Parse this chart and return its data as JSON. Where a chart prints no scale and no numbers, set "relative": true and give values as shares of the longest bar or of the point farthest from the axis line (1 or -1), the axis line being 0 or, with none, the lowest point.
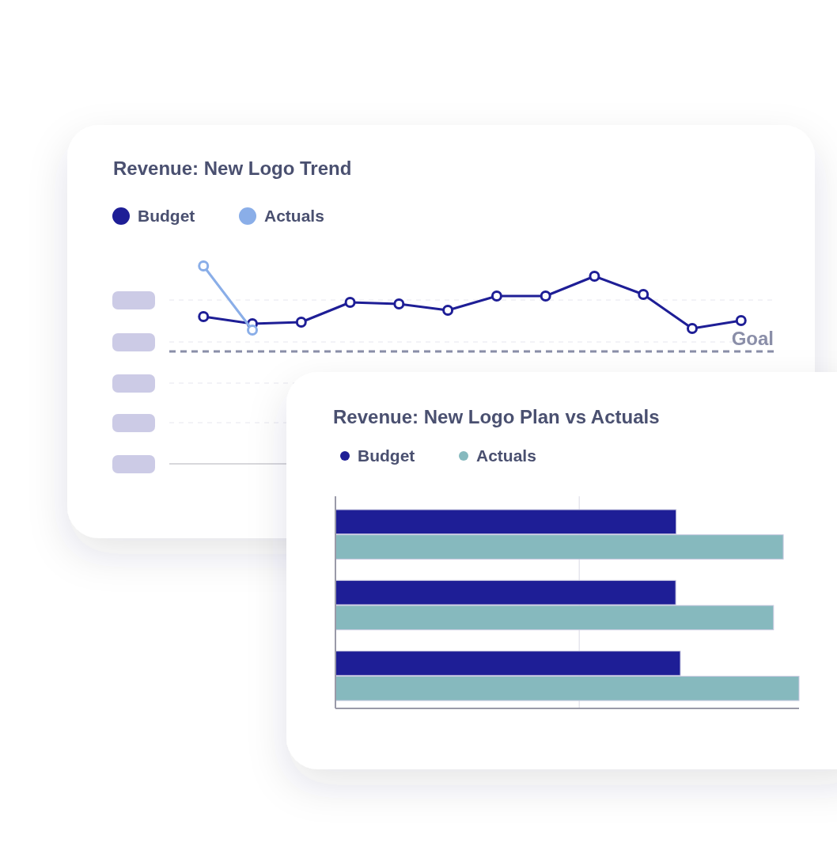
{
  "chart_data": [
    {
      "type": "line",
      "title": "Revenue: New Logo Trend",
      "categories": [
        null,
        null,
        null,
        null,
        null,
        null,
        null,
        null,
        null,
        null,
        null,
        null
      ],
      "relative": true,
      "marker": "circle",
      "line_style": "solid",
      "legend": "top left",
      "grid": "y",
      "series": [
        {
          "name": "Budget",
          "color": "#1e1e96",
          "values": [
            0.744,
            0.708,
            0.716,
            0.816,
            0.808,
            0.776,
            0.848,
            0.848,
            0.948,
            0.856,
            0.684,
            0.724
          ]
        },
        {
          "name": "Actuals",
          "color": "#8aaee8",
          "values": [
            1.0,
            0.676,
            null,
            null,
            null,
            null,
            null,
            null,
            null,
            null,
            null,
            null
          ]
        }
      ],
      "ref_lines": [
        {
          "axis": "y",
          "value": 0.568,
          "label": "Goal",
          "color": "#8a8ea8",
          "line_style": "dashed"
        }
      ]
    },
    {
      "type": "bar",
      "orientation": "horizontal",
      "title": "Revenue: New Logo Plan vs Actuals",
      "categories": [
        null,
        null,
        null
      ],
      "relative": true,
      "legend": "top left",
      "ref_lines": [
        {
          "axis": "x",
          "value": 0.526,
          "color": "#e6e6ee",
          "line_style": "solid"
        }
      ],
      "series": [
        {
          "name": "Budget",
          "color": "#1e1e96",
          "values": [
            0.735,
            0.734,
            0.744
          ]
        },
        {
          "name": "Actuals",
          "color": "#86b9be",
          "values": [
            0.966,
            0.945,
            1.0
          ]
        }
      ]
    }
  ]
}
